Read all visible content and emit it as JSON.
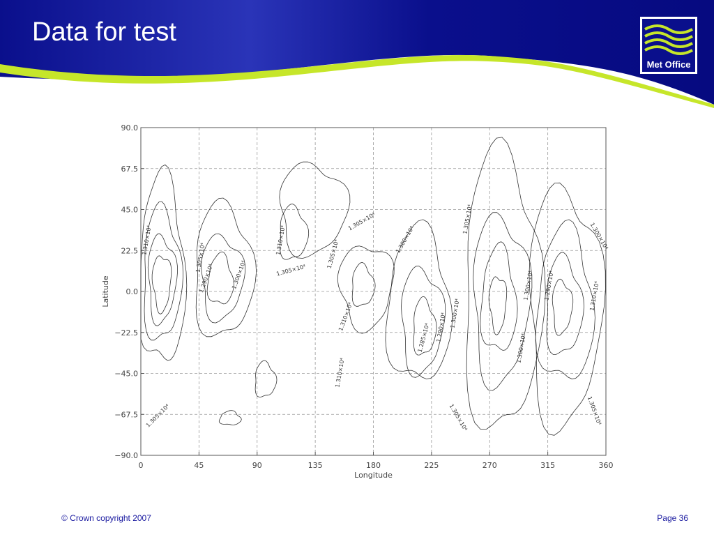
{
  "header": {
    "title": "Data for test",
    "logo": "Met Office"
  },
  "footer": {
    "copyright": "© Crown copyright 2007",
    "page": "Page 36"
  },
  "chart_data": {
    "type": "contour",
    "xlabel": "Longitude",
    "ylabel": "Latitude",
    "xlim": [
      0,
      360
    ],
    "ylim": [
      -90,
      90
    ],
    "xticks": [
      0,
      45,
      90,
      135,
      180,
      225,
      270,
      315,
      360
    ],
    "yticks": [
      {
        "value": 90,
        "label": "90.0"
      },
      {
        "value": 67.5,
        "label": "67.5"
      },
      {
        "value": 45,
        "label": "45.0"
      },
      {
        "value": 22.5,
        "label": "22.5"
      },
      {
        "value": 0,
        "label": "0.0"
      },
      {
        "value": -22.5,
        "label": "−22.5"
      },
      {
        "value": -45,
        "label": "−45.0"
      },
      {
        "value": -67.5,
        "label": "−67.5"
      },
      {
        "value": -90,
        "label": "−90.0"
      }
    ],
    "grid": true,
    "levels": [
      12850,
      12900,
      13000,
      13050,
      13100
    ],
    "value_labels": [
      "1.285×10⁴",
      "1.290×10⁴",
      "1.300×10⁴",
      "1.305×10⁴",
      "1.310×10⁴"
    ]
  }
}
